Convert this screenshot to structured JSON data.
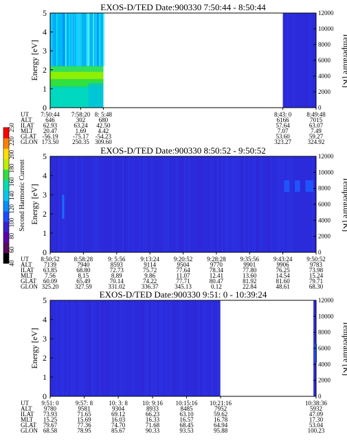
{
  "chart_data": [
    {
      "type": "heatmap",
      "title": "EXOS-D/TED Date:900330 7:50:44 - 8:50:44",
      "ylabel": "Energy [eV]",
      "y2label": "Temperature [K]",
      "ylim": [
        0,
        5
      ],
      "y2lim": [
        0,
        12000
      ],
      "yticks": [
        "0",
        "1",
        "2",
        "3",
        "4",
        "5"
      ],
      "y2ticks": [
        "0",
        "2000",
        "4000",
        "6000",
        "8000",
        "10000",
        "12000"
      ],
      "data_coverage": [
        [
          0.0,
          0.2
        ],
        [
          0.875,
          1.0
        ]
      ],
      "ephemeris_labels": [
        "UT",
        "ALT",
        "ILAT",
        "MLT",
        "GLAT",
        "GLON"
      ],
      "ephemeris": [
        {
          "frac": 0.0,
          "values": [
            "7:50:44",
            "646",
            "62.93",
            "20.47",
            "-56.19",
            "173.50"
          ]
        },
        {
          "frac": 0.115,
          "values": [
            "7:58:20",
            "302",
            "63.24",
            "1.69",
            "-75.17",
            "250.35"
          ]
        },
        {
          "frac": 0.2,
          "values": [
            "8: 5:48",
            "680",
            "42.50",
            "4.42",
            "-54.23",
            "309.60"
          ]
        },
        {
          "frac": 0.875,
          "values": [
            "8:43: 0",
            "6166",
            "57.64",
            "7.07",
            "53.60",
            "323.27"
          ]
        },
        {
          "frac": 1.0,
          "values": [
            "8:49:48",
            "7015",
            "63.07",
            "7.49",
            "59.27",
            "324.92"
          ]
        }
      ]
    },
    {
      "type": "heatmap",
      "title": "EXOS-D/TED Date:900330 8:50:52 - 9:50:52",
      "ylabel": "Energy [eV]",
      "y2label": "Temperature [K]",
      "ylim": [
        0,
        5
      ],
      "y2lim": [
        0,
        12000
      ],
      "yticks": [
        "0",
        "1",
        "2",
        "3",
        "4",
        "5"
      ],
      "y2ticks": [
        "0",
        "2000",
        "4000",
        "6000",
        "8000",
        "10000",
        "12000"
      ],
      "data_coverage": [
        [
          0.0,
          1.0
        ]
      ],
      "ephemeris_labels": [
        "UT",
        "ALT",
        "ILAT",
        "MLT",
        "GLAT",
        "GLON"
      ],
      "ephemeris": [
        {
          "frac": 0.0,
          "values": [
            "8:50:52",
            "7139",
            "63.85",
            "7.56",
            "60.09",
            "325.20"
          ]
        },
        {
          "frac": 0.125,
          "values": [
            "8:58:28",
            "7940",
            "68.80",
            "8.15",
            "65.49",
            "327.59"
          ]
        },
        {
          "frac": 0.25,
          "values": [
            "9: 5:56",
            "8593",
            "72.73",
            "8.89",
            "70.14",
            "331.02"
          ]
        },
        {
          "frac": 0.375,
          "values": [
            "9:13:24",
            "9114",
            "75.72",
            "9.86",
            "74.22",
            "336.37"
          ]
        },
        {
          "frac": 0.5,
          "values": [
            "9:20:52",
            "9504",
            "77.64",
            "11.07",
            "77.71",
            "345.13"
          ]
        },
        {
          "frac": 0.625,
          "values": [
            "9:28:28",
            "9770",
            "78.34",
            "12.41",
            "80.47",
            "0.12"
          ]
        },
        {
          "frac": 0.75,
          "values": [
            "9:35:56",
            "9901",
            "77.80",
            "13.60",
            "81.92",
            "22.84"
          ]
        },
        {
          "frac": 0.875,
          "values": [
            "9:43:24",
            "9906",
            "76.25",
            "14.54",
            "81.60",
            "48.61"
          ]
        },
        {
          "frac": 1.0,
          "values": [
            "9:50:52",
            "9783",
            "73.98",
            "15.24",
            "79.71",
            "68.30"
          ]
        }
      ]
    },
    {
      "type": "heatmap",
      "title": "EXOS-D/TED Date:900330 9:51: 0 - 10:39:24",
      "ylabel": "Energy [eV]",
      "y2label": "Temperature [K]",
      "ylim": [
        0,
        5
      ],
      "y2lim": [
        0,
        12000
      ],
      "yticks": [
        "0",
        "1",
        "2",
        "3",
        "4",
        "5"
      ],
      "y2ticks": [
        "0",
        "2000",
        "4000",
        "6000",
        "8000",
        "10000",
        "12000"
      ],
      "data_coverage": [
        [
          0.0,
          0.64
        ],
        [
          0.99,
          1.0
        ]
      ],
      "ephemeris_labels": [
        "UT",
        "ALT",
        "ILAT",
        "MLT",
        "GLAT",
        "GLON"
      ],
      "ephemeris": [
        {
          "frac": 0.0,
          "values": [
            "9:51: 0",
            "9780",
            "73.93",
            "15.25",
            "79.67",
            "68.58"
          ]
        },
        {
          "frac": 0.128,
          "values": [
            "9:57: 8",
            "9581",
            "71.65",
            "15.69",
            "77.36",
            "78.95"
          ]
        },
        {
          "frac": 0.256,
          "values": [
            "10: 3: 8",
            "9304",
            "69.12",
            "16.03",
            "74.70",
            "85.67"
          ]
        },
        {
          "frac": 0.385,
          "values": [
            "10: 9:16",
            "8933",
            "66.23",
            "16.33",
            "71.68",
            "90.33"
          ]
        },
        {
          "frac": 0.513,
          "values": [
            "10:15:16",
            "8485",
            "63.10",
            "16.57",
            "68.45",
            "93.53"
          ]
        },
        {
          "frac": 0.641,
          "values": [
            "10:21:16",
            "7952",
            "59.62",
            "16.78",
            "64.94",
            "95.88"
          ]
        },
        {
          "frac": 1.0,
          "values": [
            "10:38:36",
            "5932",
            "47.09",
            "17.30",
            "53.04",
            "100.23"
          ]
        }
      ]
    }
  ],
  "colorbar": {
    "label": "Second Harmonic Current",
    "ticks": [
      "40",
      "60",
      "80",
      "100",
      "120",
      "140",
      "160",
      "180",
      "200",
      "220",
      "250"
    ],
    "colors": [
      "#000000",
      "#5a0a5a",
      "#5d00a8",
      "#3b1fd0",
      "#1f4bff",
      "#0090ff",
      "#00c8f0",
      "#00e0b0",
      "#30e040",
      "#bff000",
      "#ffe000",
      "#ff8000",
      "#ff0000"
    ]
  }
}
